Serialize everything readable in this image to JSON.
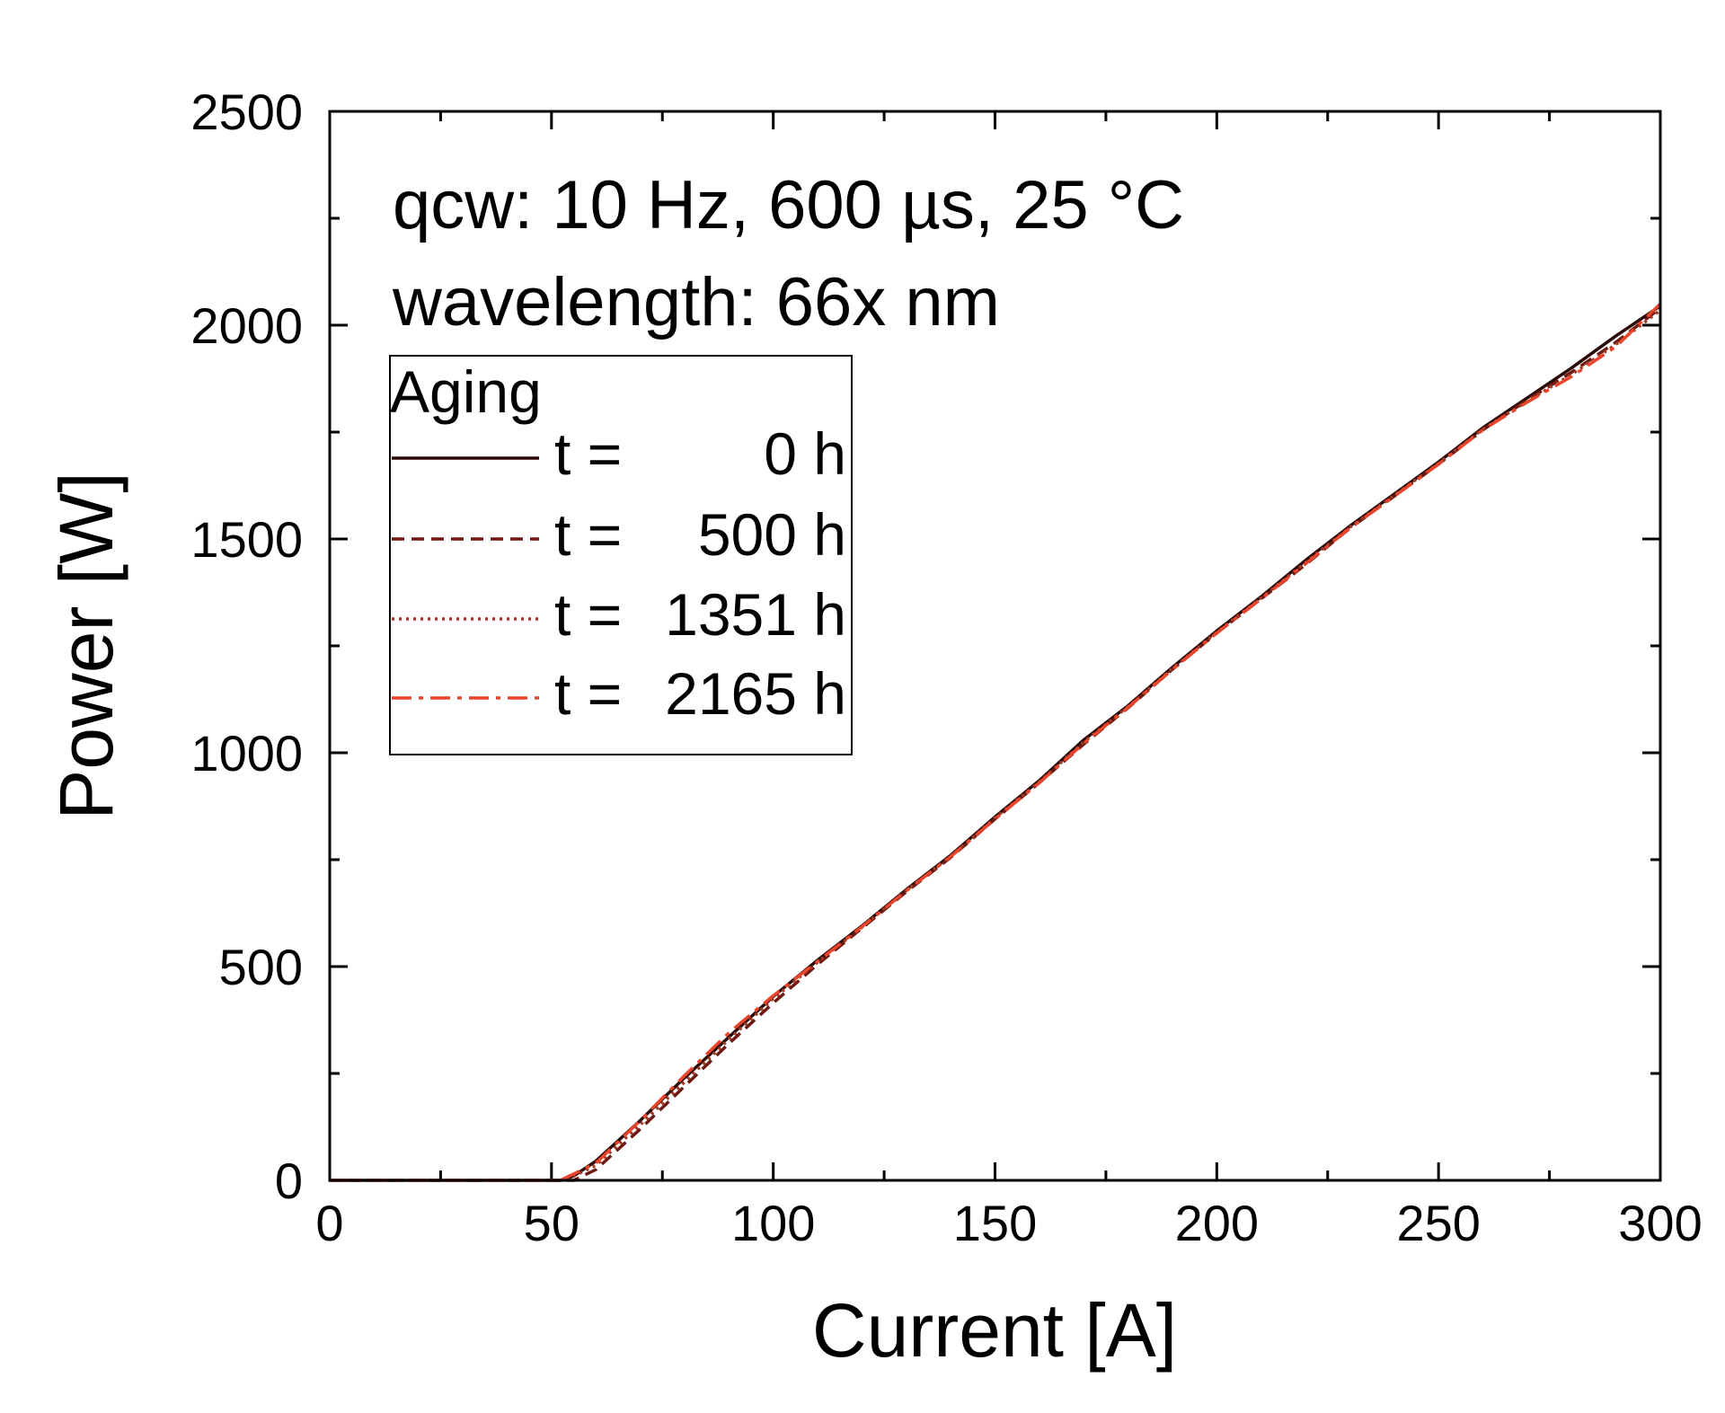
{
  "chart_data": {
    "type": "line",
    "title": "",
    "annotations": [
      "qcw: 10 Hz, 600 µs, 25 °C",
      "wavelength: 66x nm"
    ],
    "xlabel": "Current [A]",
    "ylabel": "Power [W]",
    "xlim": [
      0,
      300
    ],
    "ylim": [
      0,
      2500
    ],
    "xticks": [
      0,
      50,
      100,
      150,
      200,
      250,
      300
    ],
    "yticks": [
      0,
      500,
      1000,
      1500,
      2000,
      2500
    ],
    "x_minor_step": 25,
    "y_minor_step": 250,
    "grid": false,
    "legend": {
      "title": "Aging",
      "placement": "top-left",
      "entries": [
        {
          "prefix": "t =",
          "value": "0 h"
        },
        {
          "prefix": "t =",
          "value": "500 h"
        },
        {
          "prefix": "t =",
          "value": "1351 h"
        },
        {
          "prefix": "t =",
          "value": "2165 h"
        }
      ]
    },
    "series": [
      {
        "name": "t = 0 h",
        "color": "#2b0a08",
        "dash": "solid",
        "x": [
          0,
          52,
          55,
          60,
          70,
          80,
          90,
          100,
          110,
          120,
          130,
          140,
          150,
          160,
          170,
          180,
          190,
          200,
          210,
          220,
          230,
          240,
          250,
          260,
          270,
          280,
          290,
          300
        ],
        "y": [
          0,
          0,
          10,
          45,
          140,
          240,
          335,
          430,
          515,
          595,
          680,
          760,
          850,
          935,
          1030,
          1110,
          1200,
          1285,
          1365,
          1450,
          1530,
          1605,
          1680,
          1760,
          1830,
          1900,
          1975,
          2045
        ]
      },
      {
        "name": "t = 500 h",
        "color": "#6e1a12",
        "dash": "dashed",
        "x": [
          0,
          55,
          60,
          70,
          80,
          90,
          100,
          110,
          120,
          130,
          140,
          150,
          160,
          170,
          180,
          190,
          200,
          210,
          220,
          230,
          240,
          250,
          260,
          270,
          280,
          290,
          300
        ],
        "y": [
          0,
          0,
          25,
          120,
          220,
          320,
          415,
          505,
          590,
          675,
          755,
          845,
          930,
          1020,
          1105,
          1195,
          1280,
          1360,
          1440,
          1525,
          1600,
          1675,
          1755,
          1825,
          1890,
          1960,
          2040
        ]
      },
      {
        "name": "t = 1351 h",
        "color": "#a03a24",
        "dash": "dotted",
        "x": [
          0,
          53,
          60,
          70,
          80,
          90,
          100,
          110,
          120,
          130,
          140,
          150,
          160,
          170,
          180,
          190,
          200,
          210,
          220,
          230,
          240,
          250,
          260,
          270,
          280,
          290,
          300
        ],
        "y": [
          0,
          0,
          35,
          130,
          230,
          330,
          425,
          510,
          592,
          678,
          758,
          848,
          932,
          1025,
          1108,
          1197,
          1282,
          1362,
          1445,
          1527,
          1602,
          1677,
          1757,
          1822,
          1885,
          1955,
          2035
        ]
      },
      {
        "name": "t = 2165 h",
        "color": "#e8452c",
        "dash": "dashdot",
        "x": [
          0,
          52,
          60,
          70,
          80,
          90,
          100,
          110,
          120,
          130,
          140,
          150,
          160,
          170,
          180,
          190,
          200,
          210,
          220,
          230,
          240,
          250,
          260,
          270,
          280,
          290,
          300
        ],
        "y": [
          0,
          0,
          40,
          140,
          245,
          345,
          432,
          512,
          593,
          677,
          757,
          845,
          930,
          1022,
          1106,
          1195,
          1280,
          1360,
          1442,
          1525,
          1600,
          1675,
          1755,
          1820,
          1880,
          1950,
          2050
        ]
      }
    ]
  }
}
